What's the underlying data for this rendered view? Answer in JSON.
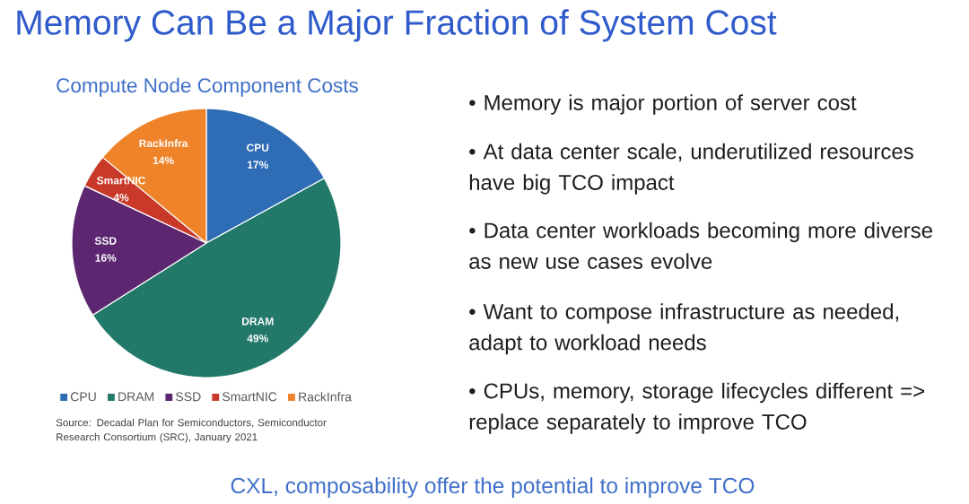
{
  "chart_data": {
    "type": "pie",
    "title": "Memory Can Be a Major Fraction of System Cost",
    "subtitle": "Compute Node Component Costs",
    "categories": [
      "CPU",
      "DRAM",
      "SSD",
      "SmartNIC",
      "RackInfra"
    ],
    "values": [
      17,
      49,
      16,
      4,
      14
    ],
    "colors": [
      "#2E6CB5",
      "#22796A",
      "#5C2670",
      "#C8392A",
      "#EE8329"
    ],
    "value_labels": [
      "17%",
      "49%",
      "16%",
      "4%",
      "14%"
    ],
    "legend": "bottom",
    "annotations": [
      "• Memory is major portion of server cost",
      "• At data center scale, underutilized resources have big TCO impact",
      "• Data center workloads becoming more diverse as new use cases evolve",
      "• Want to compose infrastructure as needed, adapt to workload needs",
      "• CPUs, memory, storage lifecycles different => replace separately to improve TCO",
      "Source: Decadal Plan for Semiconductors, Semiconductor Research Consortium (SRC), January 2021",
      "CXL, composability offer the potential to improve TCO"
    ]
  }
}
